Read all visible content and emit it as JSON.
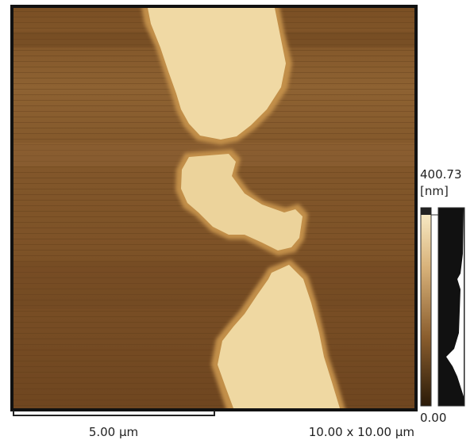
{
  "scale_bar": {
    "label": "5.00 µm"
  },
  "scan_size": "10.00 x 10.00 µm",
  "color_bar": {
    "max": "400.73",
    "unit": "[nm]",
    "min": "0.00"
  }
}
